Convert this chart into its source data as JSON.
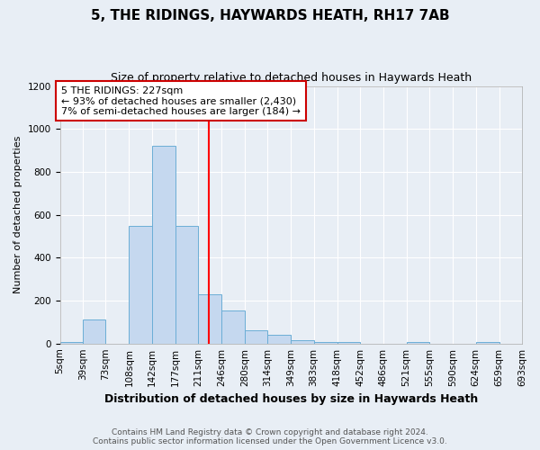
{
  "title": "5, THE RIDINGS, HAYWARDS HEATH, RH17 7AB",
  "subtitle": "Size of property relative to detached houses in Haywards Heath",
  "xlabel": "Distribution of detached houses by size in Haywards Heath",
  "ylabel": "Number of detached properties",
  "footer1": "Contains HM Land Registry data © Crown copyright and database right 2024.",
  "footer2": "Contains public sector information licensed under the Open Government Licence v3.0.",
  "annotation_line1": "5 THE RIDINGS: 227sqm",
  "annotation_line2": "← 93% of detached houses are smaller (2,430)",
  "annotation_line3": "7% of semi-detached houses are larger (184) →",
  "bar_edges": [
    5,
    39,
    73,
    108,
    142,
    177,
    211,
    246,
    280,
    314,
    349,
    383,
    418,
    452,
    486,
    521,
    555,
    590,
    624,
    659,
    693
  ],
  "bar_heights": [
    5,
    110,
    0,
    550,
    920,
    550,
    230,
    155,
    60,
    40,
    15,
    5,
    5,
    0,
    0,
    5,
    0,
    0,
    5,
    0
  ],
  "bar_color": "#c5d8ef",
  "bar_edge_color": "#6baed6",
  "red_line_x": 227,
  "ylim": [
    0,
    1200
  ],
  "yticks": [
    0,
    200,
    400,
    600,
    800,
    1000,
    1200
  ],
  "bg_color": "#e8eef5",
  "plot_bg_color": "#e8eef5",
  "grid_color": "#ffffff",
  "annotation_box_color": "#ffffff",
  "annotation_border_color": "#cc0000",
  "title_fontsize": 11,
  "subtitle_fontsize": 9,
  "xlabel_fontsize": 9,
  "ylabel_fontsize": 8,
  "tick_fontsize": 7.5,
  "annotation_fontsize": 8,
  "footer_fontsize": 6.5
}
